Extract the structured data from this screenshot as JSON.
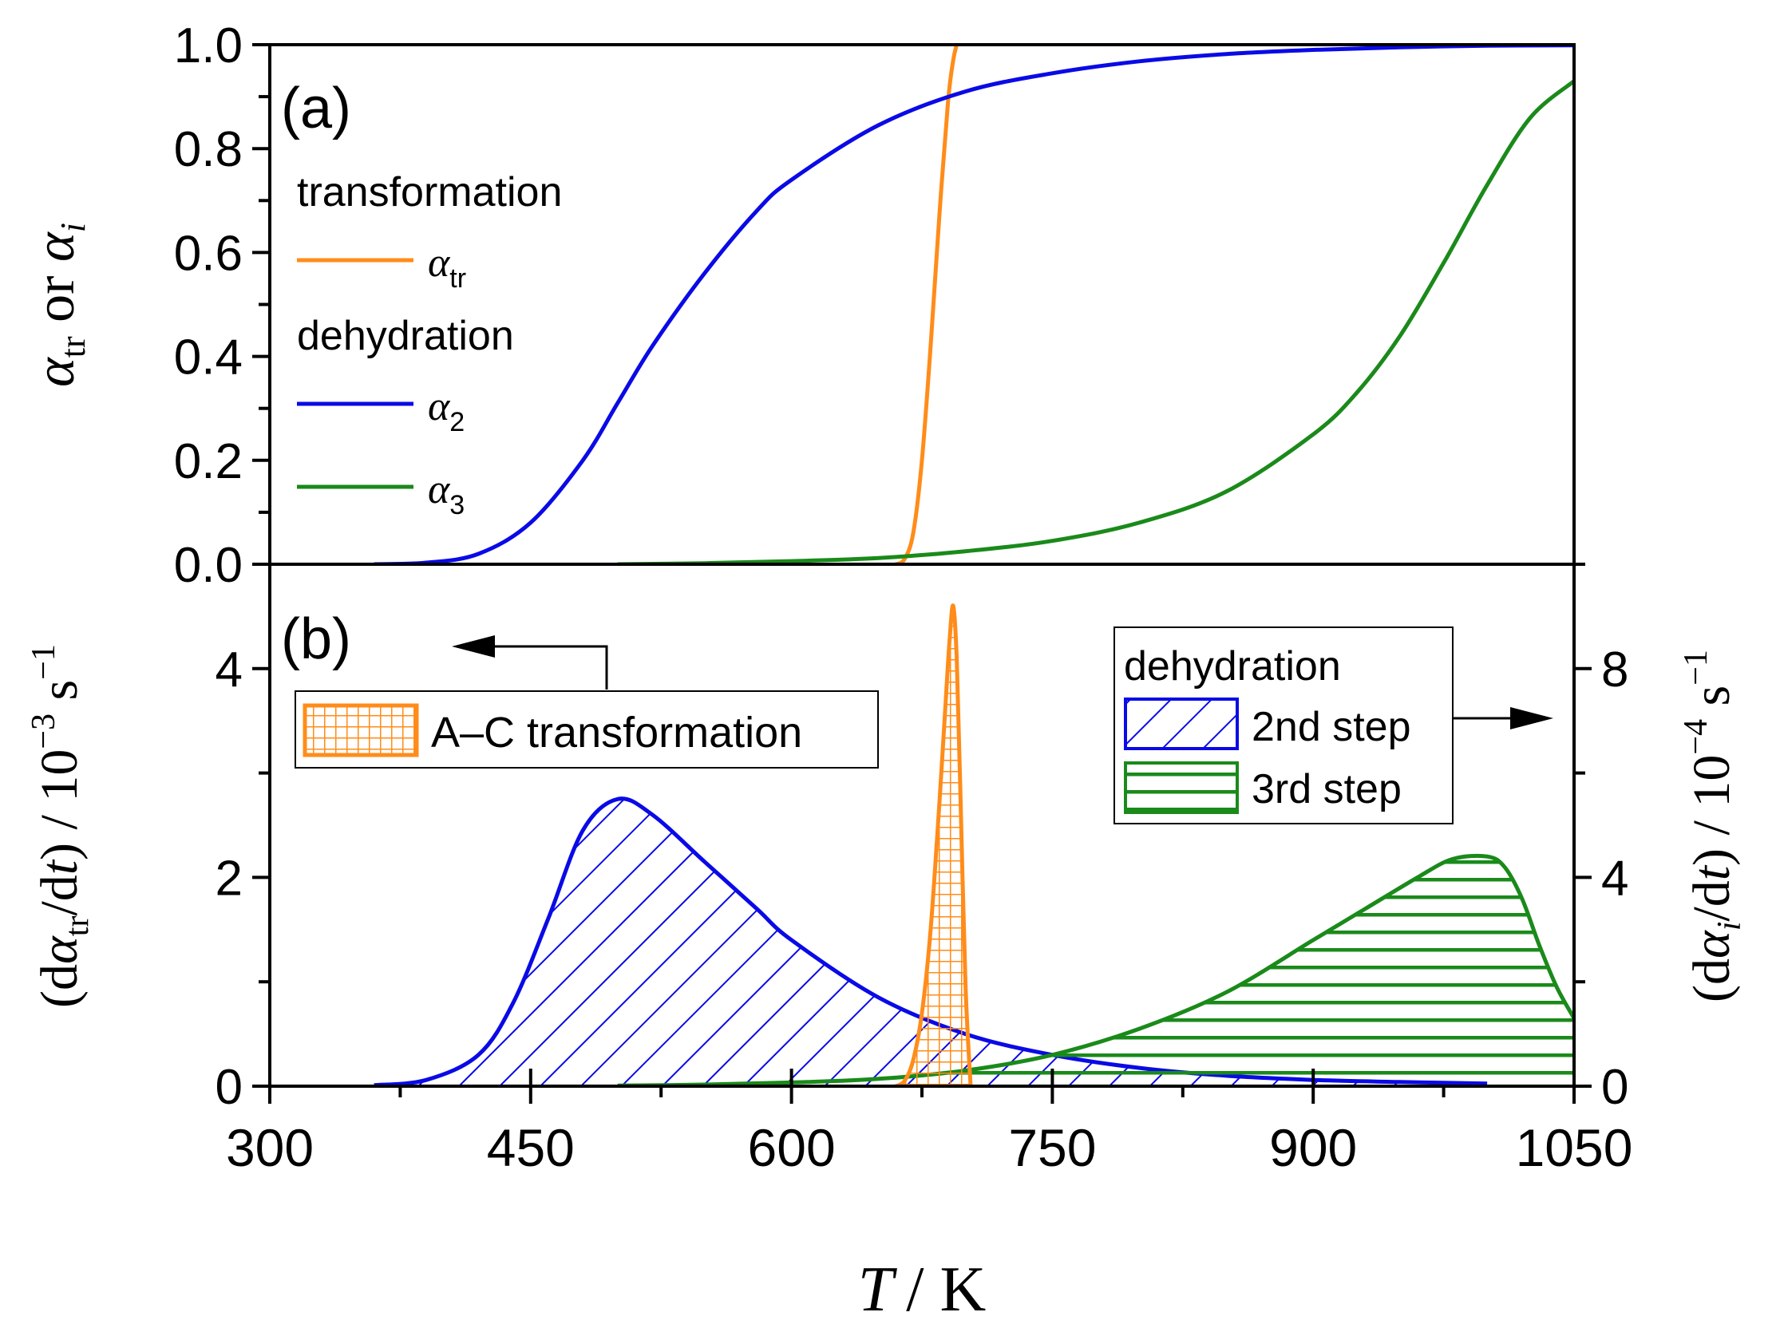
{
  "colors": {
    "transformation": "#ff8c1a",
    "dehydration_2": "#0a0ae6",
    "dehydration_3": "#1a8a1a",
    "axis": "#000000"
  },
  "x_axis": {
    "label_symbol": "T",
    "label_unit": "/ K",
    "range": [
      300,
      1050
    ],
    "ticks": [
      300,
      450,
      600,
      750,
      900,
      1050
    ],
    "tick_labels": [
      "300",
      "450",
      "600",
      "750",
      "900",
      "1050"
    ]
  },
  "panel_a": {
    "label": "(a)",
    "ylabel_parts": [
      "α",
      "tr",
      " or ",
      "α",
      "i"
    ],
    "yrange": [
      0,
      1
    ],
    "yticks": [
      0.0,
      0.2,
      0.4,
      0.6,
      0.8,
      1.0
    ],
    "ytick_labels": [
      "0.0",
      "0.2",
      "0.4",
      "0.6",
      "0.8",
      "1.0"
    ],
    "legend": {
      "heading1": "transformation",
      "entry1": {
        "sym": "α",
        "sub": "tr"
      },
      "heading2": "dehydration",
      "entry2": {
        "sym": "α",
        "sub": "2"
      },
      "entry3": {
        "sym": "α",
        "sub": "3"
      }
    }
  },
  "panel_b": {
    "label": "(b)",
    "left_yrange": [
      0,
      5
    ],
    "left_yticks": [
      0,
      2,
      4
    ],
    "left_ytick_labels": [
      "0",
      "2",
      "4"
    ],
    "right_yrange": [
      0,
      10
    ],
    "right_yticks": [
      0,
      4,
      8
    ],
    "right_ytick_labels": [
      "0",
      "4",
      "8"
    ],
    "left_ylabel": {
      "open": "(d",
      "sym": "α",
      "sub": "tr",
      "mid": "/d",
      "t": "t",
      "close": ") / 10",
      "exp": "−3",
      "unit": " s",
      "unitexp": "−1"
    },
    "right_ylabel": {
      "open": "(d",
      "sym": "α",
      "sub": "i",
      "mid": "/d",
      "t": "t",
      "close": ") / 10",
      "exp": "−4",
      "unit": " s",
      "unitexp": "−1"
    },
    "legend_left": {
      "label": "A–C transformation"
    },
    "legend_right": {
      "heading": "dehydration",
      "entry1": "2nd step",
      "entry2": "3rd step"
    }
  },
  "chart_data": [
    {
      "type": "line",
      "title": "(a)",
      "xlabel": "T / K",
      "ylabel": "α_tr or α_i",
      "xlim": [
        300,
        1050
      ],
      "ylim": [
        0,
        1
      ],
      "series": [
        {
          "name": "α_tr",
          "x": [
            660,
            665,
            670,
            675,
            680,
            685,
            690,
            693,
            695
          ],
          "values": [
            0.0,
            0.01,
            0.06,
            0.2,
            0.42,
            0.67,
            0.89,
            0.97,
            1.0
          ]
        },
        {
          "name": "α_2",
          "x": [
            360,
            390,
            420,
            450,
            480,
            500,
            520,
            550,
            580,
            600,
            650,
            700,
            750,
            800,
            850,
            900,
            950,
            1000,
            1050
          ],
          "values": [
            0.0,
            0.003,
            0.02,
            0.08,
            0.2,
            0.31,
            0.42,
            0.56,
            0.68,
            0.74,
            0.845,
            0.91,
            0.945,
            0.968,
            0.982,
            0.99,
            0.995,
            0.998,
            0.999
          ]
        },
        {
          "name": "α_3",
          "x": [
            500,
            550,
            600,
            650,
            700,
            750,
            800,
            850,
            900,
            925,
            950,
            975,
            1000,
            1025,
            1050
          ],
          "values": [
            0.0,
            0.002,
            0.006,
            0.012,
            0.025,
            0.045,
            0.08,
            0.14,
            0.25,
            0.33,
            0.44,
            0.58,
            0.73,
            0.86,
            0.93
          ]
        }
      ]
    },
    {
      "type": "area",
      "title": "(b)",
      "xlabel": "T / K",
      "ylabel": "(dα_tr/dt) / 10^-3 s^-1",
      "ylabel_right": "(dα_i/dt) / 10^-4 s^-1",
      "xlim": [
        300,
        1050
      ],
      "ylim": [
        0,
        5
      ],
      "ylim_right": [
        0,
        10
      ],
      "series": [
        {
          "name": "A–C transformation",
          "axis": "left",
          "x": [
            660,
            665,
            670,
            675,
            680,
            685,
            688,
            691,
            693,
            695,
            697,
            700,
            703
          ],
          "values": [
            0.0,
            0.05,
            0.25,
            0.7,
            1.5,
            2.7,
            3.5,
            4.3,
            4.6,
            4.1,
            2.9,
            1.0,
            0.0
          ]
        },
        {
          "name": "2nd step",
          "axis": "right",
          "x": [
            360,
            390,
            420,
            440,
            460,
            480,
            500,
            520,
            550,
            580,
            600,
            650,
            700,
            750,
            800,
            850,
            900,
            950,
            1000
          ],
          "values": [
            0.02,
            0.12,
            0.6,
            1.6,
            3.2,
            4.9,
            5.5,
            5.2,
            4.3,
            3.4,
            2.8,
            1.7,
            1.0,
            0.6,
            0.35,
            0.2,
            0.12,
            0.08,
            0.05
          ]
        },
        {
          "name": "3rd step",
          "axis": "right",
          "x": [
            500,
            550,
            600,
            650,
            700,
            750,
            800,
            850,
            900,
            930,
            960,
            980,
            1000,
            1010,
            1020,
            1030,
            1040,
            1050
          ],
          "values": [
            0.01,
            0.03,
            0.07,
            0.14,
            0.3,
            0.6,
            1.1,
            1.8,
            2.8,
            3.4,
            4.0,
            4.35,
            4.4,
            4.2,
            3.6,
            2.7,
            1.9,
            1.3
          ]
        }
      ]
    }
  ]
}
